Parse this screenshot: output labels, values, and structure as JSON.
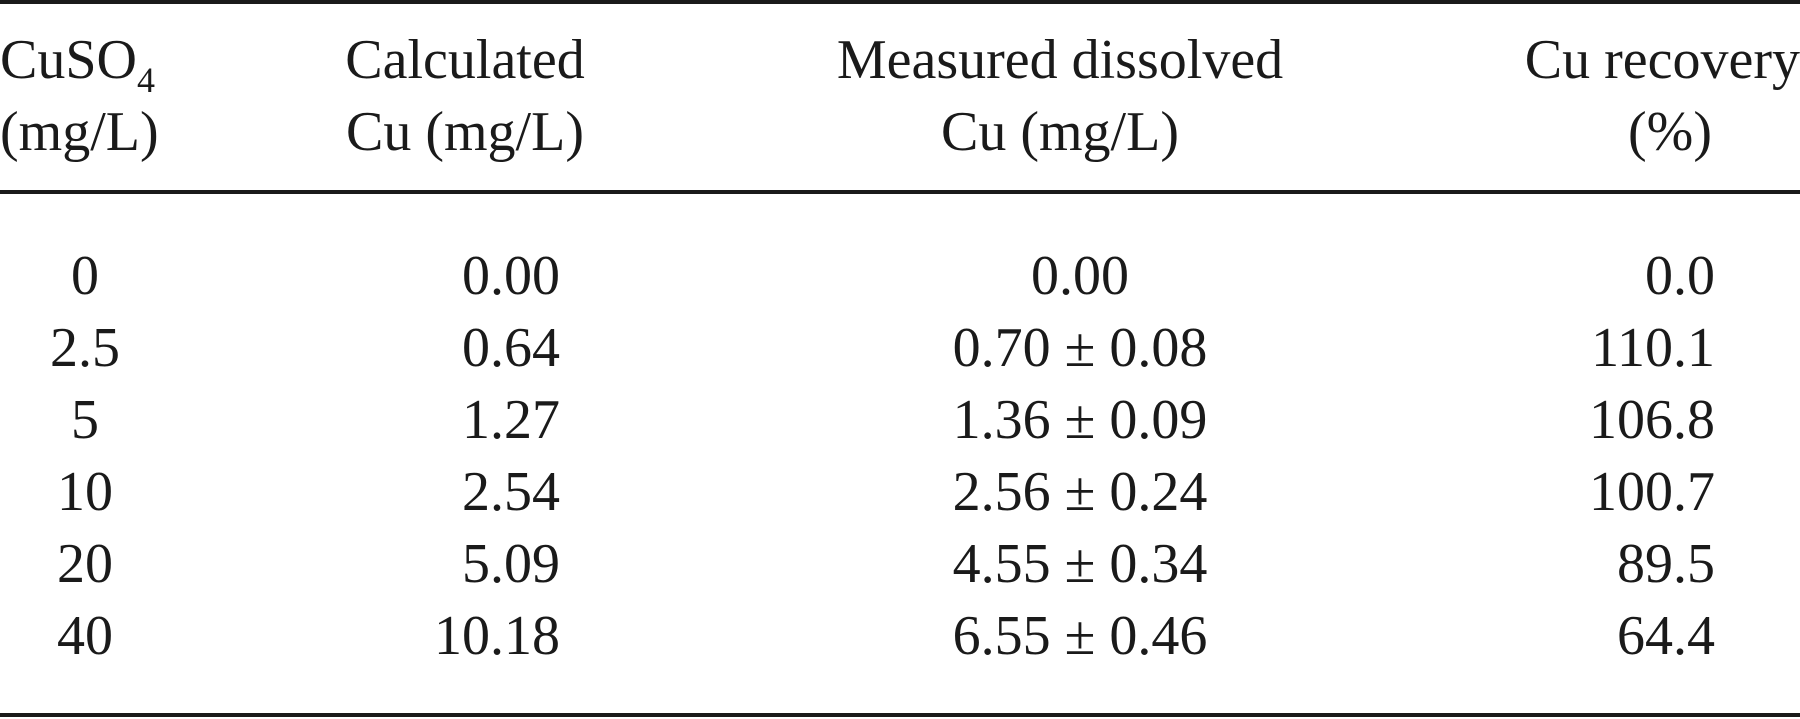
{
  "table": {
    "headers": {
      "col1": {
        "line1": "CuSO",
        "sub": "4",
        "line2": "(mg/L)"
      },
      "col2": {
        "line1": "Calculated",
        "line2": "Cu (mg/L)"
      },
      "col3": {
        "line1": "Measured dissolved",
        "line2": "Cu (mg/L)"
      },
      "col4": {
        "line1": "Cu recovery",
        "line2": "(%)"
      }
    },
    "rows": [
      {
        "cuso4": "0",
        "calculated": "0.00",
        "measured": "0.00",
        "recovery": "0.0"
      },
      {
        "cuso4": "2.5",
        "calculated": "0.64",
        "measured": "0.70 ± 0.08",
        "recovery": "110.1"
      },
      {
        "cuso4": "5",
        "calculated": "1.27",
        "measured": "1.36 ± 0.09",
        "recovery": "106.8"
      },
      {
        "cuso4": "10",
        "calculated": "2.54",
        "measured": "2.56 ± 0.24",
        "recovery": "100.7"
      },
      {
        "cuso4": "20",
        "calculated": "5.09",
        "measured": "4.55 ± 0.34",
        "recovery": "89.5"
      },
      {
        "cuso4": "40",
        "calculated": "10.18",
        "measured": "6.55 ± 0.46",
        "recovery": "64.4"
      }
    ]
  }
}
